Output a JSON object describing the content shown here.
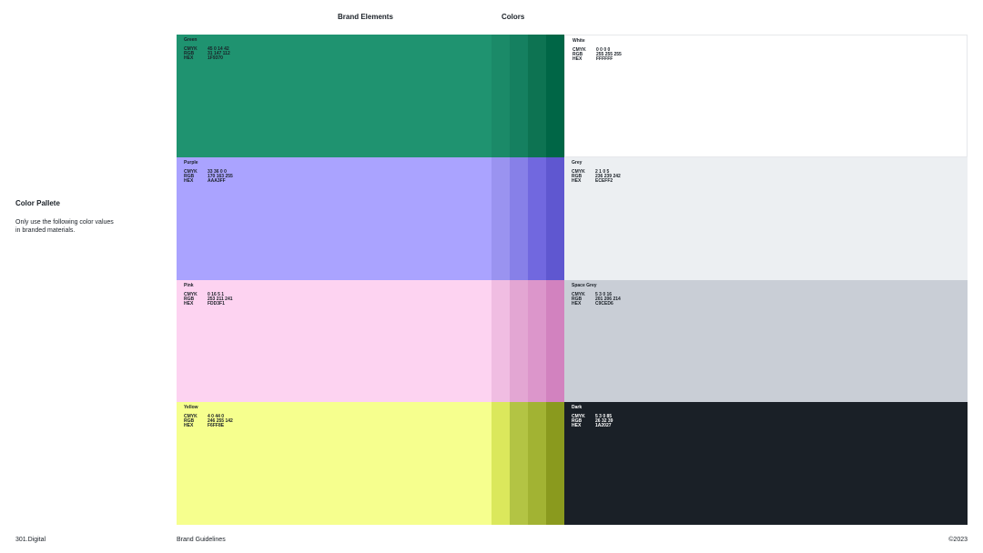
{
  "header": {
    "section": "Brand Elements",
    "page": "Colors"
  },
  "sidebar": {
    "title": "Color Pallete",
    "description": "Only use the following color values in branded materials."
  },
  "footer": {
    "brand": "301.Digital",
    "doc": "Brand Guidelines",
    "copyright": "©2023"
  },
  "keys": {
    "cmyk": "CMYK",
    "rgb": "RGB",
    "hex": "HEX"
  },
  "rows": [
    {
      "brand": {
        "name": "Green",
        "cmyk": "45 0 14 42",
        "rgb": "31 147 112",
        "hex": "1F9370",
        "color": "#1F9370"
      },
      "shades": [
        "#1b8a68",
        "#158060",
        "#0d7352",
        "#006646"
      ],
      "neutral": {
        "name": "White",
        "cmyk": "0 0 0 0",
        "rgb": "255 255 255",
        "hex": "FFFFFF",
        "color": "#FFFFFF",
        "text": "#1a2027"
      }
    },
    {
      "brand": {
        "name": "Purple",
        "cmyk": "33 36 0 0",
        "rgb": "170 163 255",
        "hex": "AAA3FF",
        "color": "#AAA3FF"
      },
      "shades": [
        "#9a93f0",
        "#8780e8",
        "#7168df",
        "#5f57d0"
      ],
      "neutral": {
        "name": "Grey",
        "cmyk": "2 1 0 5",
        "rgb": "236 239 242",
        "hex": "ECEFF2",
        "color": "#ECEFF2",
        "text": "#1a2027"
      }
    },
    {
      "brand": {
        "name": "Pink",
        "cmyk": "0 16 5 1",
        "rgb": "253 211 241",
        "hex": "FDD3F1",
        "color": "#FDD3F1"
      },
      "shades": [
        "#f0bde2",
        "#e3a6d3",
        "#dc96cb",
        "#d282bf"
      ],
      "neutral": {
        "name": "Space Grey",
        "cmyk": "5 3 0 16",
        "rgb": "201 206 214",
        "hex": "C9CED6",
        "color": "#C9CED6",
        "text": "#1a2027"
      }
    },
    {
      "brand": {
        "name": "Yellow",
        "cmyk": "4 0 44 0",
        "rgb": "246 255 142",
        "hex": "F6FF8E",
        "color": "#F6FF8E"
      },
      "shades": [
        "#dbe85c",
        "#b3c444",
        "#a2b333",
        "#8a9a1e"
      ],
      "neutral": {
        "name": "Dark",
        "cmyk": "5 3 0 85",
        "rgb": "26 32 39",
        "hex": "1A2027",
        "color": "#1A2027",
        "text": "#ffffff"
      }
    }
  ]
}
